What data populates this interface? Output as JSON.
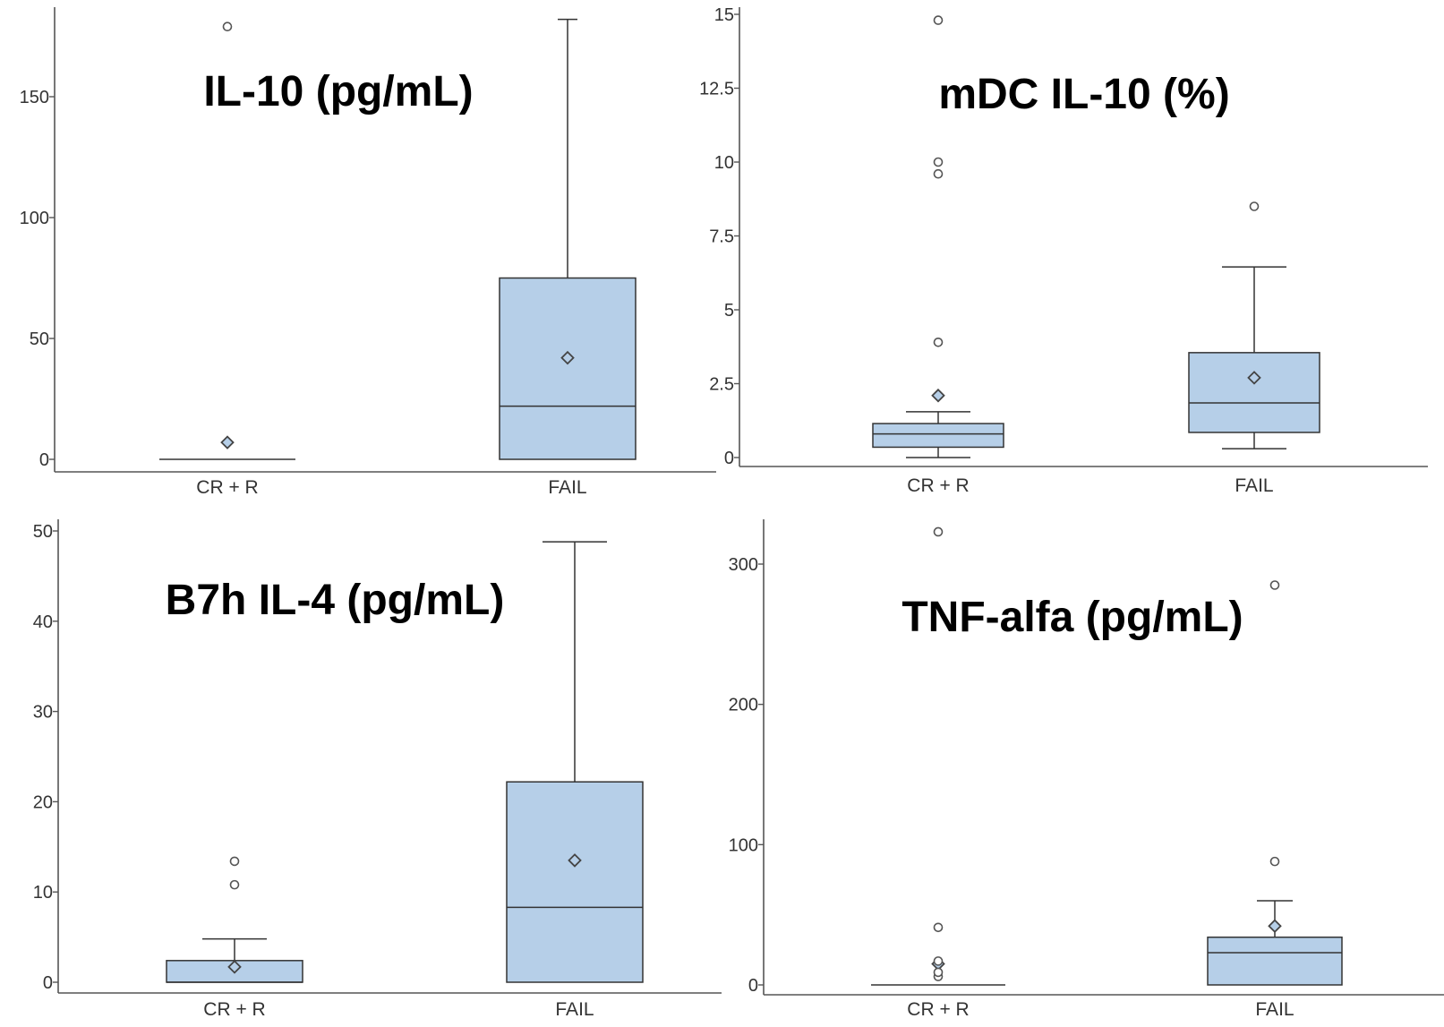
{
  "box_fill_color": "#b6cfe8",
  "chart_data": [
    {
      "type": "box",
      "title": "IL-10 (pg/mL)",
      "categories": [
        "CR + R",
        "FAIL"
      ],
      "ylim": [
        0,
        180
      ],
      "yticks": [
        0,
        50,
        100,
        150
      ],
      "boxes": [
        {
          "q1": 0,
          "median": 0,
          "q3": 0,
          "whisker_low": 0,
          "whisker_high": 0,
          "mean": 7,
          "outliers": [
            179
          ]
        },
        {
          "q1": 0,
          "median": 22,
          "q3": 75,
          "whisker_low": 0,
          "whisker_high": 182,
          "mean": 42,
          "outliers": []
        }
      ]
    },
    {
      "type": "box",
      "title": "mDC IL-10 (%)",
      "categories": [
        "CR + R",
        "FAIL"
      ],
      "ylim": [
        0,
        15
      ],
      "yticks": [
        0,
        2.5,
        5,
        7.5,
        10,
        12.5,
        15
      ],
      "ytick_labels": [
        "0",
        "2.5",
        "5",
        "7.5",
        "10",
        "12.5",
        "15"
      ],
      "boxes": [
        {
          "q1": 0.35,
          "median": 0.8,
          "q3": 1.15,
          "whisker_low": 0,
          "whisker_high": 1.55,
          "mean": 2.1,
          "outliers": [
            3.9,
            9.6,
            10.0,
            14.8
          ]
        },
        {
          "q1": 0.85,
          "median": 1.85,
          "q3": 3.55,
          "whisker_low": 0.3,
          "whisker_high": 6.45,
          "mean": 2.7,
          "outliers": [
            8.5
          ]
        }
      ]
    },
    {
      "type": "box",
      "title": "B7h IL-4 (pg/mL)",
      "categories": [
        "CR + R",
        "FAIL"
      ],
      "ylim": [
        0,
        50
      ],
      "yticks": [
        0,
        10,
        20,
        30,
        40,
        50
      ],
      "boxes": [
        {
          "q1": 0,
          "median": 0,
          "q3": 2.4,
          "whisker_low": 0,
          "whisker_high": 4.8,
          "mean": 1.7,
          "outliers": [
            10.8,
            13.4
          ]
        },
        {
          "q1": 0,
          "median": 8.3,
          "q3": 22.2,
          "whisker_low": 0,
          "whisker_high": 48.8,
          "mean": 13.5,
          "outliers": []
        }
      ]
    },
    {
      "type": "box",
      "title": "TNF-alfa (pg/mL)",
      "categories": [
        "CR + R",
        "FAIL"
      ],
      "ylim": [
        0,
        300
      ],
      "yticks": [
        0,
        100,
        200,
        300
      ],
      "boxes": [
        {
          "q1": 0,
          "median": 0,
          "q3": 0,
          "whisker_low": 0,
          "whisker_high": 0,
          "mean": 15,
          "outliers": [
            6,
            9,
            17,
            41,
            323
          ]
        },
        {
          "q1": 0,
          "median": 23,
          "q3": 34,
          "whisker_low": 0,
          "whisker_high": 60,
          "mean": 42,
          "outliers": [
            88,
            285
          ]
        }
      ]
    }
  ]
}
